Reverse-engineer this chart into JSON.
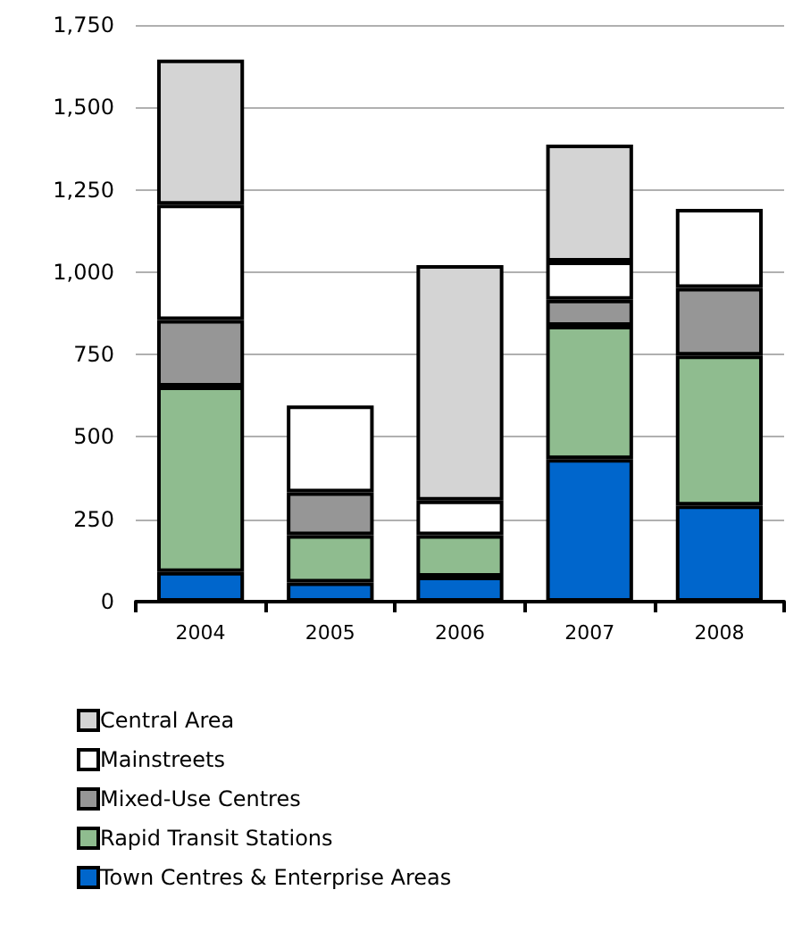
{
  "chart_data": {
    "type": "bar",
    "stacked": true,
    "categories": [
      "2004",
      "2005",
      "2006",
      "2007",
      "2008"
    ],
    "series": [
      {
        "name": "Town Centres & Enterprise Areas",
        "color": "#0066cc",
        "values": [
          90,
          58,
          76,
          433,
          292
        ]
      },
      {
        "name": "Rapid Transit Stations",
        "color": "#8fbc8f",
        "values": [
          563,
          144,
          126,
          404,
          455
        ]
      },
      {
        "name": "Mixed-Use Centres",
        "color": "#969696",
        "values": [
          202,
          130,
          0,
          79,
          205
        ]
      },
      {
        "name": "Mainstreets",
        "color": "#ffffff",
        "values": [
          350,
          263,
          105,
          116,
          240
        ]
      },
      {
        "name": "Central Area",
        "color": "#d4d4d4",
        "values": [
          440,
          0,
          714,
          355,
          0
        ]
      }
    ],
    "ylim": [
      0,
      1750
    ],
    "yticks": [
      {
        "value": 0,
        "label": "0"
      },
      {
        "value": 250,
        "label": "250"
      },
      {
        "value": 500,
        "label": "500"
      },
      {
        "value": 750,
        "label": "750"
      },
      {
        "value": 1000,
        "label": "1,000"
      },
      {
        "value": 1250,
        "label": "1,250"
      },
      {
        "value": 1500,
        "label": "1,500"
      },
      {
        "value": 1750,
        "label": "1,750"
      }
    ],
    "grid": "y",
    "legend": "bottom"
  }
}
